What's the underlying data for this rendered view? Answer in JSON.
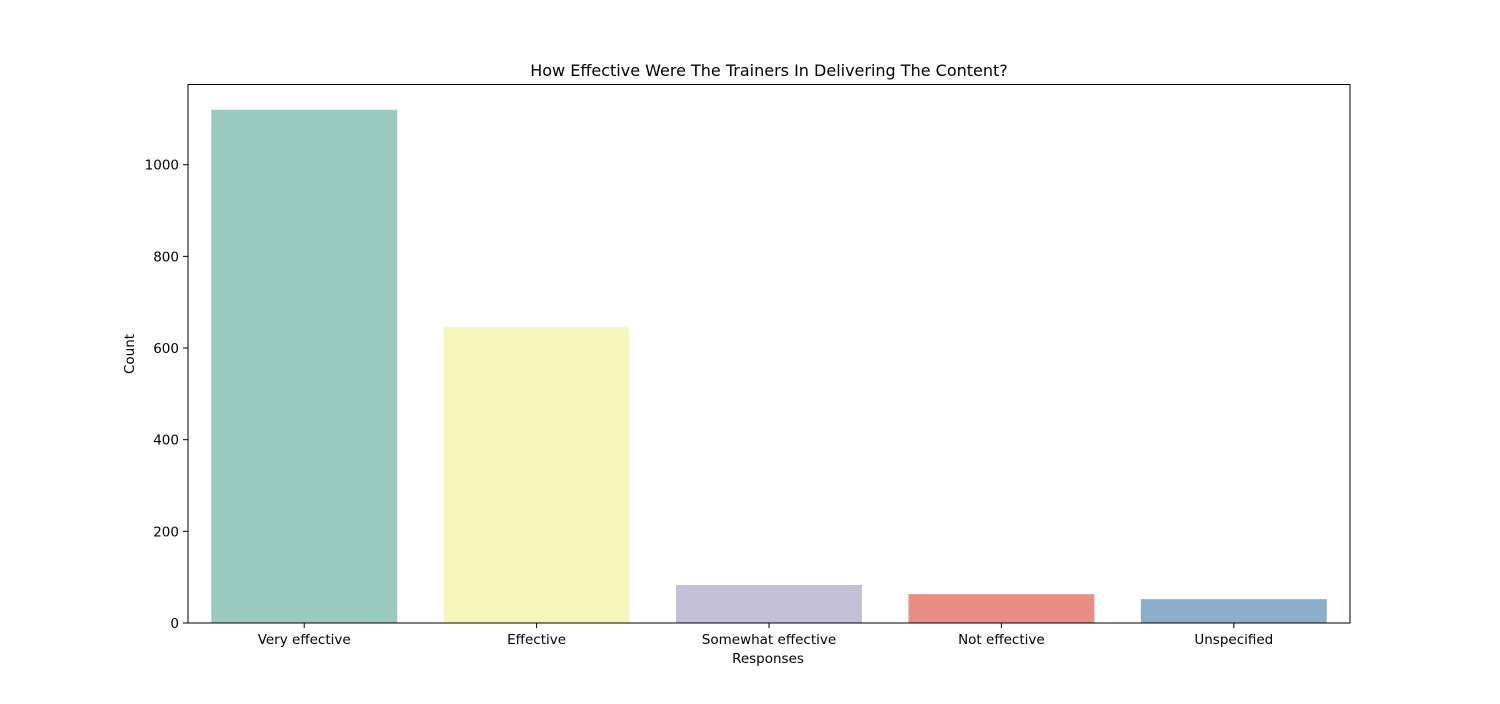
{
  "chart_data": {
    "type": "bar",
    "title": "How Effective Were The Trainers In Delivering The Content?",
    "xlabel": "Responses",
    "ylabel": "Count",
    "categories": [
      "Very effective",
      "Effective",
      "Somewhat effective",
      "Not effective",
      "Unspecified"
    ],
    "values": [
      1120,
      646,
      83,
      63,
      52
    ],
    "colors": [
      "#99c9bf",
      "#f6f5bc",
      "#c2bfd7",
      "#ea8e85",
      "#8bafcb"
    ],
    "ylim": [
      0,
      1175
    ],
    "yticks": [
      0,
      200,
      400,
      600,
      800,
      1000
    ],
    "grid": false,
    "legend": "none"
  }
}
